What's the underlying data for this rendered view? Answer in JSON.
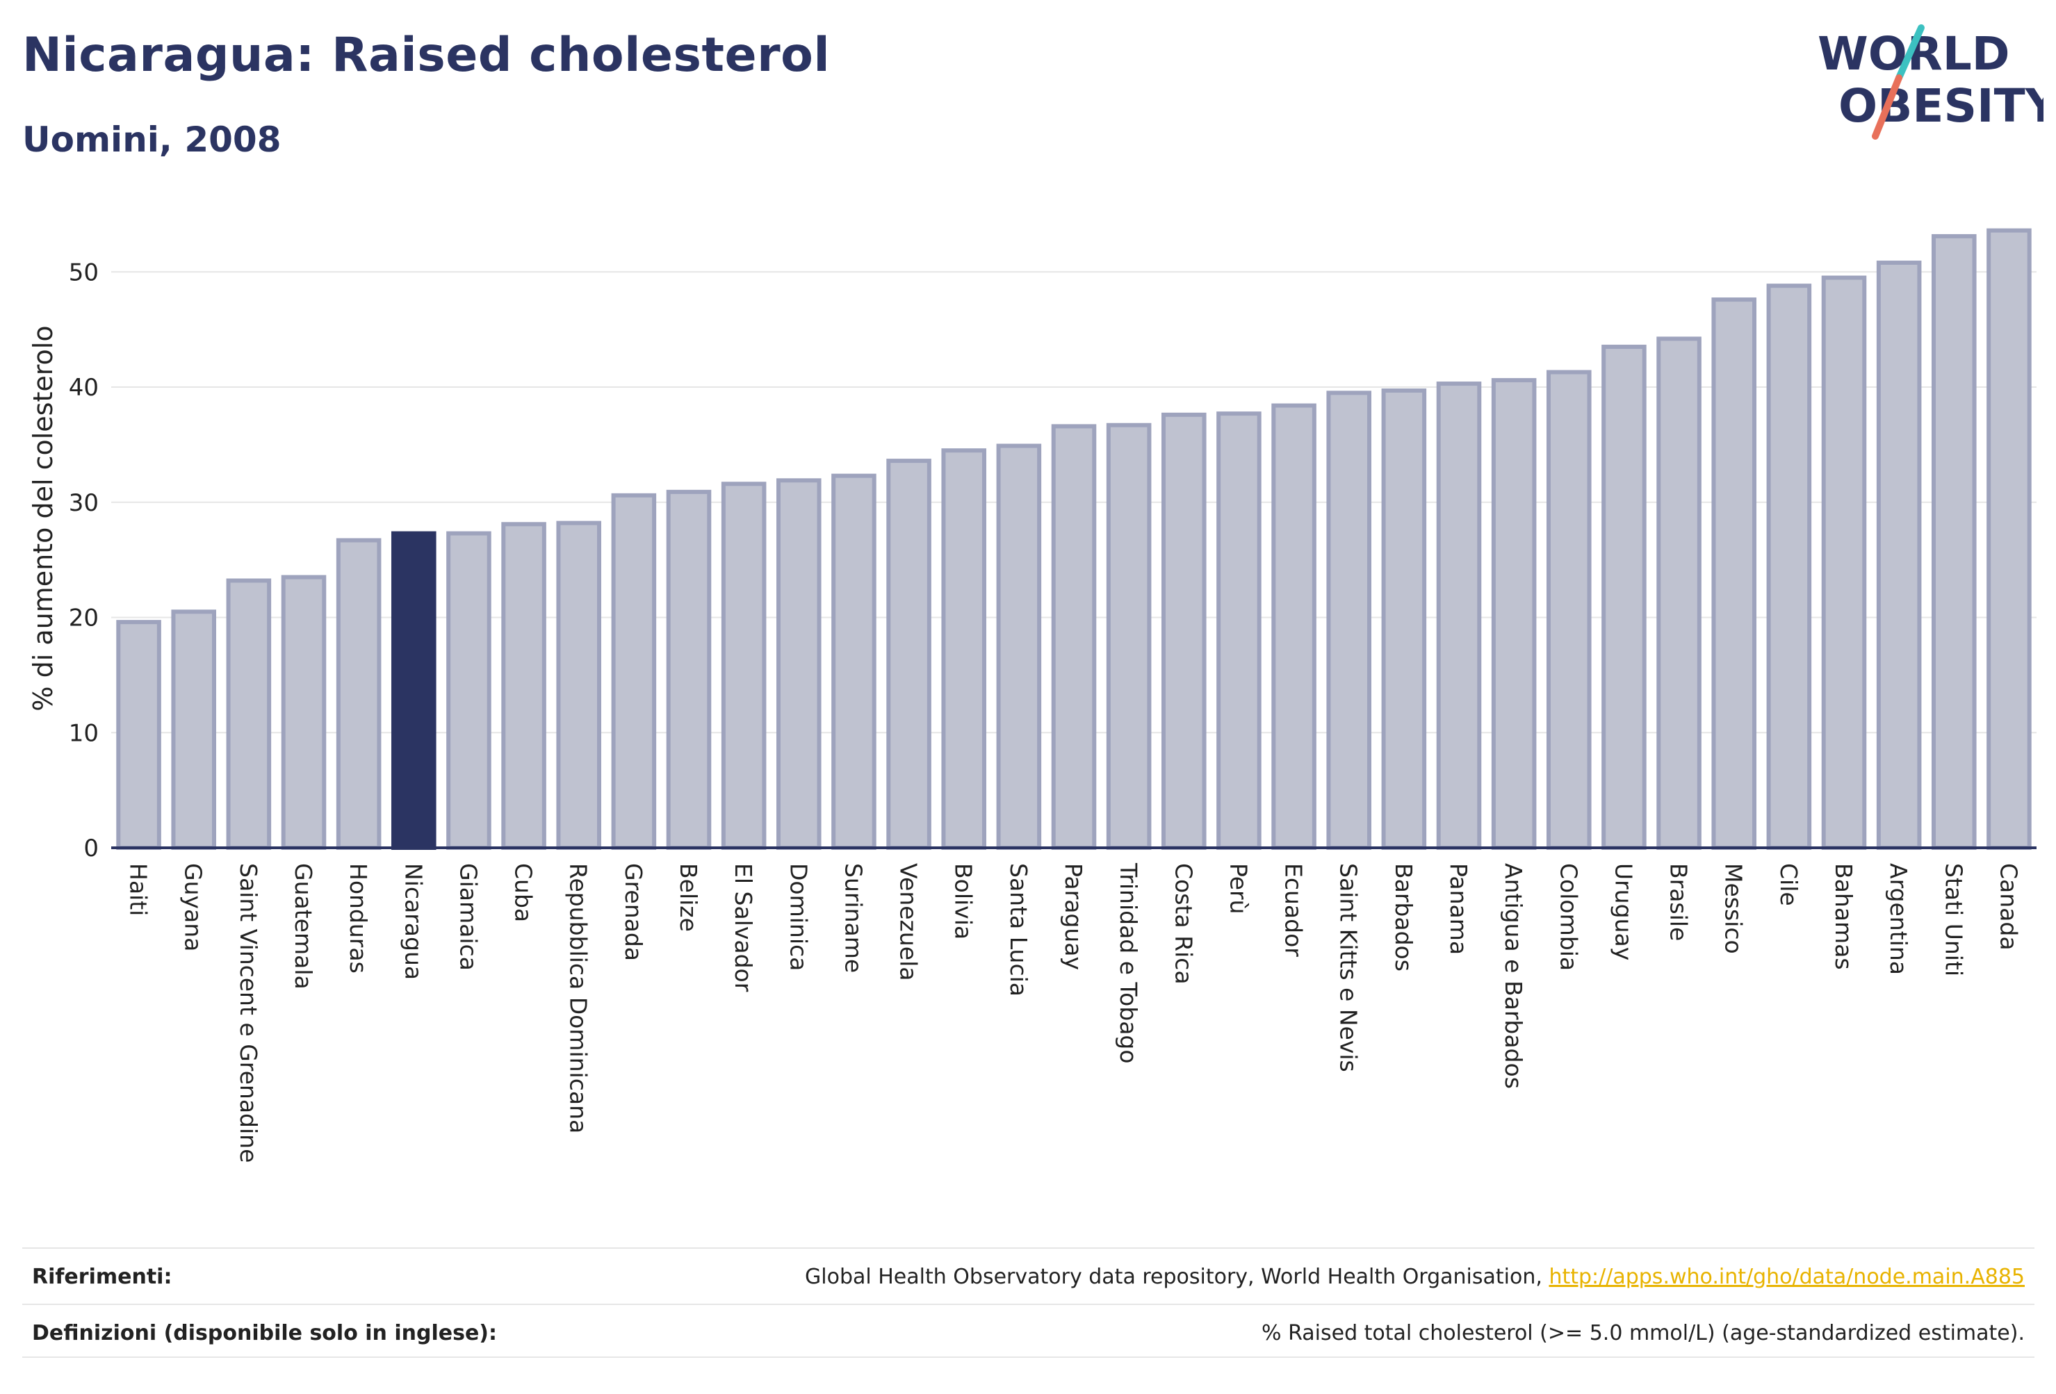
{
  "title": "Nicaragua: Raised cholesterol",
  "subtitle": "Uomini, 2008",
  "logo": {
    "line1": "WORLD",
    "line2": "OBESITY",
    "accent_teal": "#3cc1c1",
    "accent_coral": "#e8705a",
    "text_color": "#2b3462"
  },
  "colors": {
    "bar": "#bfc2d0",
    "bar_border": "#9ea3bd",
    "highlight": "#2b3462",
    "axis": "#2b3462",
    "grid": "#e6e6e6"
  },
  "chart_data": {
    "type": "bar",
    "ylabel": "% di aumento del colesterolo",
    "xlabel": "",
    "ylim": [
      0,
      54
    ],
    "yticks": [
      0,
      10,
      20,
      30,
      40,
      50
    ],
    "grid": true,
    "highlight": "Nicaragua",
    "categories": [
      "Haiti",
      "Guyana",
      "Saint Vincent e Grenadine",
      "Guatemala",
      "Honduras",
      "Nicaragua",
      "Giamaica",
      "Cuba",
      "Repubblica Dominicana",
      "Grenada",
      "Belize",
      "El Salvador",
      "Dominica",
      "Suriname",
      "Venezuela",
      "Bolivia",
      "Santa Lucia",
      "Paraguay",
      "Trinidad e Tobago",
      "Costa Rica",
      "Perù",
      "Ecuador",
      "Saint Kitts e Nevis",
      "Barbados",
      "Panama",
      "Antigua e Barbados",
      "Colombia",
      "Uruguay",
      "Brasile",
      "Messico",
      "Cile",
      "Bahamas",
      "Argentina",
      "Stati Uniti",
      "Canada"
    ],
    "values": [
      19.6,
      20.5,
      23.2,
      23.5,
      26.7,
      27.3,
      27.3,
      28.1,
      28.2,
      30.6,
      30.9,
      31.6,
      31.9,
      32.3,
      33.6,
      34.5,
      34.9,
      36.6,
      36.7,
      37.6,
      37.7,
      38.4,
      39.5,
      39.7,
      40.3,
      40.6,
      41.3,
      43.5,
      44.2,
      47.6,
      48.8,
      49.5,
      50.8,
      53.1,
      53.6
    ]
  },
  "footer": {
    "references_label": "Riferimenti:",
    "references_text": "Global Health Observatory data repository, World Health Organisation, ",
    "references_link": "http://apps.who.int/gho/data/node.main.A885",
    "definitions_label": "Definizioni (disponibile solo in inglese):",
    "definitions_text": "% Raised total cholesterol (>= 5.0 mmol/L) (age-standardized estimate)."
  }
}
